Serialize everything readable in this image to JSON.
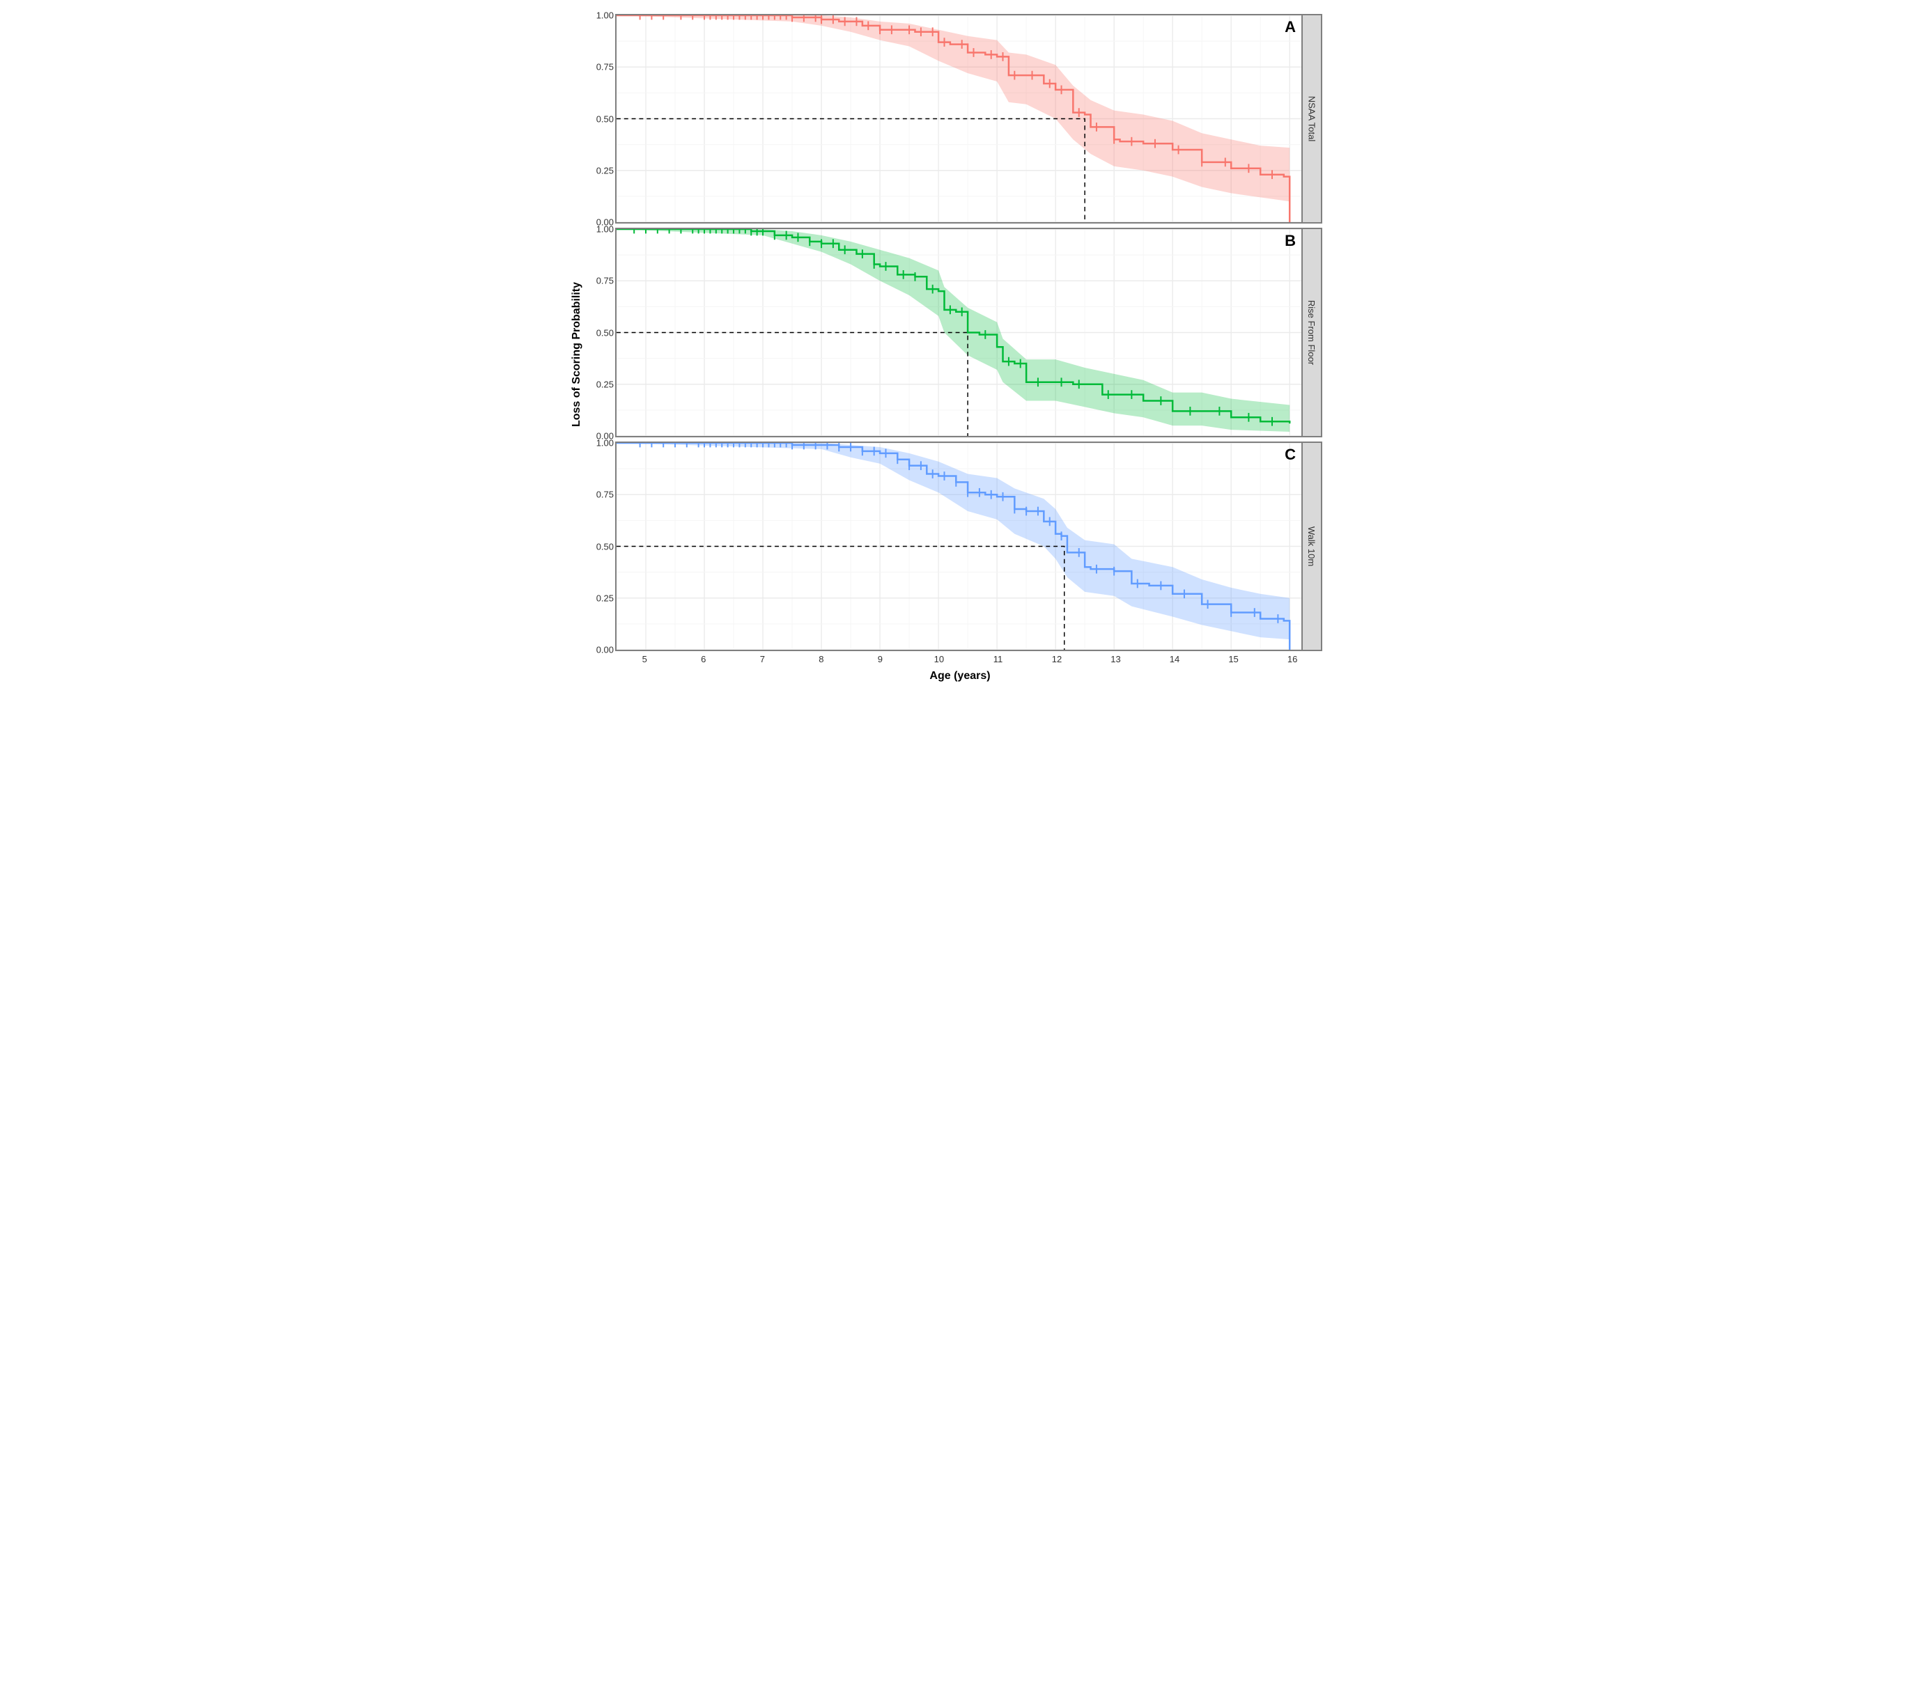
{
  "figure": {
    "y_axis_label": "Loss of Scoring Probability",
    "x_axis_label": "Age (years)",
    "background_color": "#ffffff",
    "panel_border_color": "#7f7f7f",
    "strip_bg": "#d9d9d9",
    "grid_major_color": "#ebebeb",
    "grid_minor_color": "#f5f5f5",
    "axis_font_size": 16,
    "tick_font_size": 13,
    "x": {
      "min": 4.5,
      "max": 16.2,
      "ticks": [
        5,
        6,
        7,
        8,
        9,
        10,
        11,
        12,
        13,
        14,
        15,
        16
      ]
    },
    "y": {
      "min": 0.0,
      "max": 1.0,
      "ticks": [
        0.0,
        0.25,
        0.5,
        0.75,
        1.0
      ]
    }
  },
  "panels": [
    {
      "id": "A",
      "strip_label": "NSAA Total",
      "line_color": "#f8766d",
      "ribbon_color": "rgba(248,118,109,0.30)",
      "median_line_x": 12.5,
      "survival": [
        [
          4.5,
          1.0
        ],
        [
          5.0,
          1.0
        ],
        [
          6.0,
          1.0
        ],
        [
          6.5,
          1.0
        ],
        [
          7.0,
          1.0
        ],
        [
          7.5,
          0.99
        ],
        [
          8.0,
          0.98
        ],
        [
          8.3,
          0.97
        ],
        [
          8.7,
          0.95
        ],
        [
          9.0,
          0.93
        ],
        [
          9.3,
          0.93
        ],
        [
          9.6,
          0.92
        ],
        [
          10.0,
          0.87
        ],
        [
          10.2,
          0.86
        ],
        [
          10.5,
          0.82
        ],
        [
          10.8,
          0.81
        ],
        [
          11.0,
          0.8
        ],
        [
          11.2,
          0.71
        ],
        [
          11.5,
          0.71
        ],
        [
          11.8,
          0.67
        ],
        [
          12.0,
          0.64
        ],
        [
          12.3,
          0.53
        ],
        [
          12.5,
          0.52
        ],
        [
          12.6,
          0.46
        ],
        [
          13.0,
          0.4
        ],
        [
          13.1,
          0.39
        ],
        [
          13.5,
          0.38
        ],
        [
          14.0,
          0.35
        ],
        [
          14.5,
          0.29
        ],
        [
          15.0,
          0.26
        ],
        [
          15.5,
          0.23
        ],
        [
          15.9,
          0.22
        ],
        [
          16.0,
          0.0
        ]
      ],
      "ribbon_lo": [
        [
          4.5,
          1.0
        ],
        [
          7.5,
          0.97
        ],
        [
          8.0,
          0.95
        ],
        [
          8.5,
          0.92
        ],
        [
          9.0,
          0.88
        ],
        [
          9.5,
          0.85
        ],
        [
          10.0,
          0.78
        ],
        [
          10.5,
          0.72
        ],
        [
          11.0,
          0.68
        ],
        [
          11.2,
          0.58
        ],
        [
          11.5,
          0.57
        ],
        [
          12.0,
          0.5
        ],
        [
          12.3,
          0.4
        ],
        [
          12.6,
          0.33
        ],
        [
          13.0,
          0.27
        ],
        [
          13.5,
          0.25
        ],
        [
          14.0,
          0.22
        ],
        [
          14.5,
          0.17
        ],
        [
          15.0,
          0.14
        ],
        [
          15.5,
          0.12
        ],
        [
          16.0,
          0.1
        ]
      ],
      "ribbon_hi": [
        [
          4.5,
          1.0
        ],
        [
          8.0,
          1.0
        ],
        [
          8.5,
          0.99
        ],
        [
          9.0,
          0.97
        ],
        [
          9.5,
          0.96
        ],
        [
          10.0,
          0.93
        ],
        [
          10.5,
          0.9
        ],
        [
          11.0,
          0.88
        ],
        [
          11.2,
          0.82
        ],
        [
          11.5,
          0.81
        ],
        [
          12.0,
          0.76
        ],
        [
          12.3,
          0.66
        ],
        [
          12.6,
          0.59
        ],
        [
          13.0,
          0.54
        ],
        [
          13.5,
          0.52
        ],
        [
          14.0,
          0.49
        ],
        [
          14.5,
          0.43
        ],
        [
          15.0,
          0.4
        ],
        [
          15.5,
          0.37
        ],
        [
          16.0,
          0.36
        ]
      ],
      "censor_x": [
        4.9,
        5.1,
        5.3,
        5.6,
        5.8,
        6.0,
        6.1,
        6.2,
        6.3,
        6.4,
        6.5,
        6.6,
        6.7,
        6.8,
        6.9,
        7.0,
        7.1,
        7.2,
        7.3,
        7.4,
        7.5,
        7.7,
        7.9,
        8.0,
        8.2,
        8.4,
        8.6,
        8.8,
        9.0,
        9.2,
        9.5,
        9.7,
        9.9,
        10.1,
        10.4,
        10.6,
        10.9,
        11.1,
        11.3,
        11.6,
        11.9,
        12.1,
        12.4,
        12.7,
        13.0,
        13.3,
        13.7,
        14.1,
        14.5,
        14.9,
        15.3,
        15.7
      ]
    },
    {
      "id": "B",
      "strip_label": "Rise From Floor",
      "line_color": "#00ba38",
      "ribbon_color": "rgba(0,186,56,0.28)",
      "median_line_x": 10.5,
      "survival": [
        [
          4.5,
          1.0
        ],
        [
          5.0,
          1.0
        ],
        [
          5.5,
          1.0
        ],
        [
          6.0,
          1.0
        ],
        [
          6.5,
          1.0
        ],
        [
          6.8,
          0.99
        ],
        [
          7.0,
          0.99
        ],
        [
          7.2,
          0.97
        ],
        [
          7.5,
          0.96
        ],
        [
          7.8,
          0.94
        ],
        [
          8.0,
          0.93
        ],
        [
          8.3,
          0.9
        ],
        [
          8.6,
          0.88
        ],
        [
          8.9,
          0.83
        ],
        [
          9.0,
          0.82
        ],
        [
          9.3,
          0.78
        ],
        [
          9.6,
          0.77
        ],
        [
          9.8,
          0.71
        ],
        [
          10.0,
          0.7
        ],
        [
          10.1,
          0.61
        ],
        [
          10.3,
          0.6
        ],
        [
          10.5,
          0.5
        ],
        [
          10.7,
          0.49
        ],
        [
          11.0,
          0.43
        ],
        [
          11.1,
          0.36
        ],
        [
          11.3,
          0.35
        ],
        [
          11.5,
          0.26
        ],
        [
          12.0,
          0.26
        ],
        [
          12.3,
          0.25
        ],
        [
          12.8,
          0.2
        ],
        [
          13.0,
          0.2
        ],
        [
          13.5,
          0.17
        ],
        [
          14.0,
          0.12
        ],
        [
          14.5,
          0.12
        ],
        [
          15.0,
          0.09
        ],
        [
          15.5,
          0.07
        ],
        [
          15.9,
          0.07
        ],
        [
          16.0,
          0.06
        ]
      ],
      "ribbon_lo": [
        [
          4.5,
          1.0
        ],
        [
          7.0,
          0.97
        ],
        [
          7.5,
          0.93
        ],
        [
          8.0,
          0.89
        ],
        [
          8.5,
          0.83
        ],
        [
          9.0,
          0.75
        ],
        [
          9.5,
          0.68
        ],
        [
          10.0,
          0.58
        ],
        [
          10.1,
          0.5
        ],
        [
          10.5,
          0.39
        ],
        [
          11.0,
          0.32
        ],
        [
          11.1,
          0.26
        ],
        [
          11.5,
          0.17
        ],
        [
          12.0,
          0.17
        ],
        [
          12.5,
          0.14
        ],
        [
          13.0,
          0.11
        ],
        [
          13.5,
          0.09
        ],
        [
          14.0,
          0.05
        ],
        [
          14.5,
          0.05
        ],
        [
          15.0,
          0.03
        ],
        [
          16.0,
          0.02
        ]
      ],
      "ribbon_hi": [
        [
          4.5,
          1.0
        ],
        [
          7.0,
          1.0
        ],
        [
          7.5,
          0.99
        ],
        [
          8.0,
          0.97
        ],
        [
          8.5,
          0.94
        ],
        [
          9.0,
          0.9
        ],
        [
          9.5,
          0.86
        ],
        [
          10.0,
          0.8
        ],
        [
          10.1,
          0.72
        ],
        [
          10.5,
          0.62
        ],
        [
          11.0,
          0.55
        ],
        [
          11.1,
          0.47
        ],
        [
          11.5,
          0.37
        ],
        [
          12.0,
          0.37
        ],
        [
          12.5,
          0.33
        ],
        [
          13.0,
          0.3
        ],
        [
          13.5,
          0.27
        ],
        [
          14.0,
          0.21
        ],
        [
          14.5,
          0.21
        ],
        [
          15.0,
          0.18
        ],
        [
          16.0,
          0.15
        ]
      ],
      "censor_x": [
        4.8,
        5.0,
        5.2,
        5.4,
        5.6,
        5.8,
        5.9,
        6.0,
        6.1,
        6.2,
        6.3,
        6.4,
        6.5,
        6.6,
        6.7,
        6.8,
        6.9,
        7.0,
        7.2,
        7.4,
        7.6,
        7.8,
        8.0,
        8.2,
        8.4,
        8.7,
        8.9,
        9.1,
        9.4,
        9.6,
        9.9,
        10.2,
        10.4,
        10.8,
        11.2,
        11.4,
        11.7,
        12.1,
        12.4,
        12.9,
        13.3,
        13.8,
        14.3,
        14.8,
        15.3,
        15.7
      ]
    },
    {
      "id": "C",
      "strip_label": "Walk 10m",
      "line_color": "#619cff",
      "ribbon_color": "rgba(97,156,255,0.30)",
      "median_line_x": 12.15,
      "survival": [
        [
          4.5,
          1.0
        ],
        [
          5.0,
          1.0
        ],
        [
          6.0,
          1.0
        ],
        [
          6.5,
          1.0
        ],
        [
          7.0,
          1.0
        ],
        [
          7.5,
          0.99
        ],
        [
          8.0,
          0.99
        ],
        [
          8.3,
          0.98
        ],
        [
          8.7,
          0.96
        ],
        [
          9.0,
          0.95
        ],
        [
          9.3,
          0.92
        ],
        [
          9.5,
          0.89
        ],
        [
          9.8,
          0.85
        ],
        [
          10.0,
          0.84
        ],
        [
          10.3,
          0.81
        ],
        [
          10.5,
          0.76
        ],
        [
          10.8,
          0.75
        ],
        [
          11.0,
          0.74
        ],
        [
          11.3,
          0.68
        ],
        [
          11.5,
          0.67
        ],
        [
          11.8,
          0.62
        ],
        [
          12.0,
          0.56
        ],
        [
          12.1,
          0.55
        ],
        [
          12.2,
          0.47
        ],
        [
          12.5,
          0.4
        ],
        [
          12.6,
          0.39
        ],
        [
          13.0,
          0.38
        ],
        [
          13.3,
          0.32
        ],
        [
          13.6,
          0.31
        ],
        [
          14.0,
          0.27
        ],
        [
          14.5,
          0.22
        ],
        [
          15.0,
          0.18
        ],
        [
          15.5,
          0.15
        ],
        [
          15.9,
          0.14
        ],
        [
          16.0,
          0.0
        ]
      ],
      "ribbon_lo": [
        [
          4.5,
          1.0
        ],
        [
          8.0,
          0.97
        ],
        [
          8.5,
          0.93
        ],
        [
          9.0,
          0.9
        ],
        [
          9.5,
          0.82
        ],
        [
          10.0,
          0.76
        ],
        [
          10.5,
          0.67
        ],
        [
          11.0,
          0.63
        ],
        [
          11.3,
          0.56
        ],
        [
          11.8,
          0.5
        ],
        [
          12.0,
          0.44
        ],
        [
          12.2,
          0.35
        ],
        [
          12.5,
          0.28
        ],
        [
          13.0,
          0.26
        ],
        [
          13.3,
          0.21
        ],
        [
          14.0,
          0.16
        ],
        [
          14.5,
          0.12
        ],
        [
          15.0,
          0.09
        ],
        [
          15.5,
          0.06
        ],
        [
          16.0,
          0.05
        ]
      ],
      "ribbon_hi": [
        [
          4.5,
          1.0
        ],
        [
          8.0,
          1.0
        ],
        [
          8.5,
          0.99
        ],
        [
          9.0,
          0.98
        ],
        [
          9.5,
          0.95
        ],
        [
          10.0,
          0.91
        ],
        [
          10.5,
          0.85
        ],
        [
          11.0,
          0.83
        ],
        [
          11.3,
          0.78
        ],
        [
          11.8,
          0.73
        ],
        [
          12.0,
          0.68
        ],
        [
          12.2,
          0.59
        ],
        [
          12.5,
          0.53
        ],
        [
          13.0,
          0.51
        ],
        [
          13.3,
          0.44
        ],
        [
          14.0,
          0.4
        ],
        [
          14.5,
          0.34
        ],
        [
          15.0,
          0.3
        ],
        [
          15.5,
          0.27
        ],
        [
          16.0,
          0.25
        ]
      ],
      "censor_x": [
        4.9,
        5.1,
        5.3,
        5.5,
        5.7,
        5.9,
        6.0,
        6.1,
        6.2,
        6.3,
        6.4,
        6.5,
        6.6,
        6.7,
        6.8,
        6.9,
        7.0,
        7.1,
        7.2,
        7.3,
        7.4,
        7.5,
        7.7,
        7.9,
        8.1,
        8.3,
        8.5,
        8.7,
        8.9,
        9.1,
        9.3,
        9.5,
        9.7,
        9.9,
        10.1,
        10.3,
        10.5,
        10.7,
        10.9,
        11.1,
        11.3,
        11.5,
        11.7,
        11.9,
        12.1,
        12.4,
        12.7,
        13.0,
        13.4,
        13.8,
        14.2,
        14.6,
        15.0,
        15.4,
        15.8
      ]
    }
  ]
}
